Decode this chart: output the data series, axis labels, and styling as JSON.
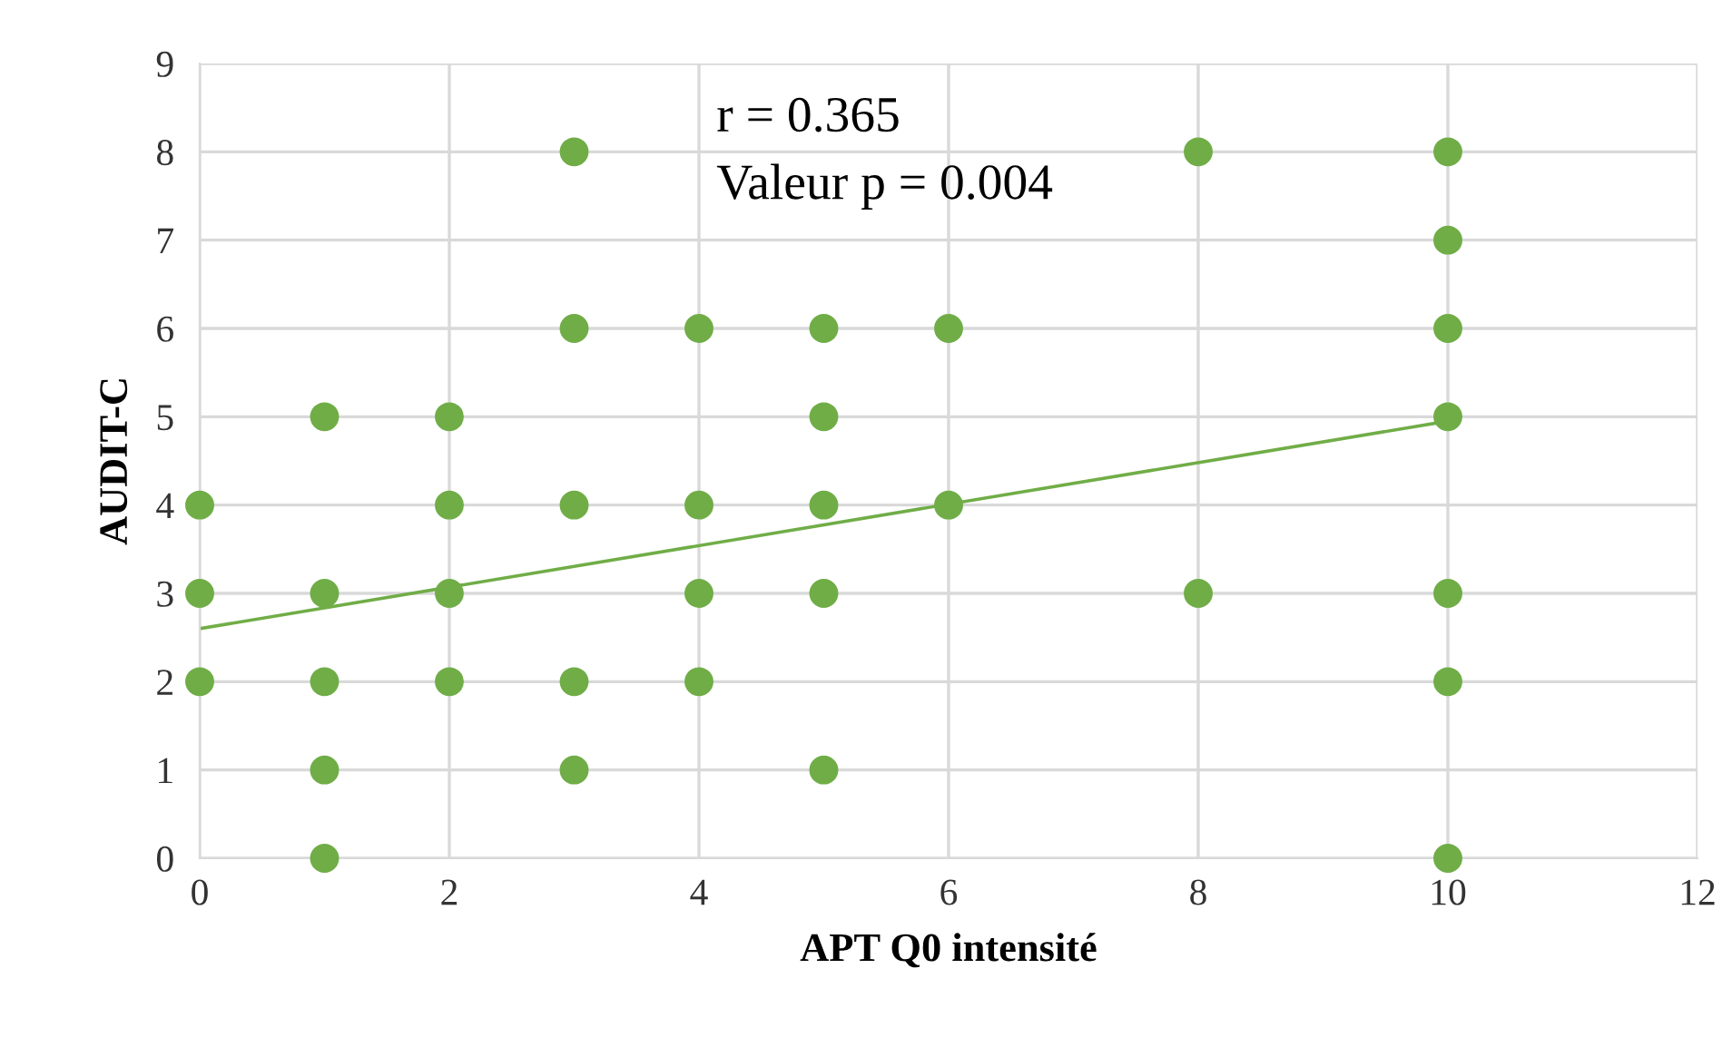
{
  "chart_data": {
    "type": "scatter",
    "xlabel": "APT Q0 intensité",
    "ylabel": "AUDIT-C",
    "xlim": [
      0,
      12
    ],
    "xticks": [
      0,
      2,
      4,
      6,
      8,
      10,
      12
    ],
    "ylim": [
      0,
      9
    ],
    "yticks": [
      0,
      1,
      2,
      3,
      4,
      5,
      6,
      7,
      8,
      9
    ],
    "grid": true,
    "annotations": [
      "r = 0.365",
      "Valeur p = 0.004"
    ],
    "series": [
      {
        "color": "#70ad47",
        "marker": "circle",
        "x": [
          0,
          0,
          0,
          1,
          1,
          1,
          1,
          1,
          2,
          2,
          2,
          2,
          3,
          3,
          3,
          3,
          3,
          4,
          4,
          4,
          4,
          5,
          5,
          5,
          5,
          5,
          6,
          6,
          8,
          8,
          10,
          10,
          10,
          10,
          10,
          10,
          10
        ],
        "values": [
          4,
          3,
          2,
          5,
          3,
          2,
          1,
          0,
          5,
          4,
          3,
          2,
          8,
          6,
          4,
          2,
          1,
          6,
          4,
          3,
          2,
          6,
          5,
          4,
          3,
          1,
          6,
          4,
          8,
          3,
          8,
          7,
          6,
          5,
          3,
          2,
          0
        ]
      },
      {
        "type": "line",
        "marker": "none",
        "color": "#70ad47",
        "x": [
          0,
          10
        ],
        "values": [
          2.6,
          4.95
        ]
      }
    ]
  }
}
